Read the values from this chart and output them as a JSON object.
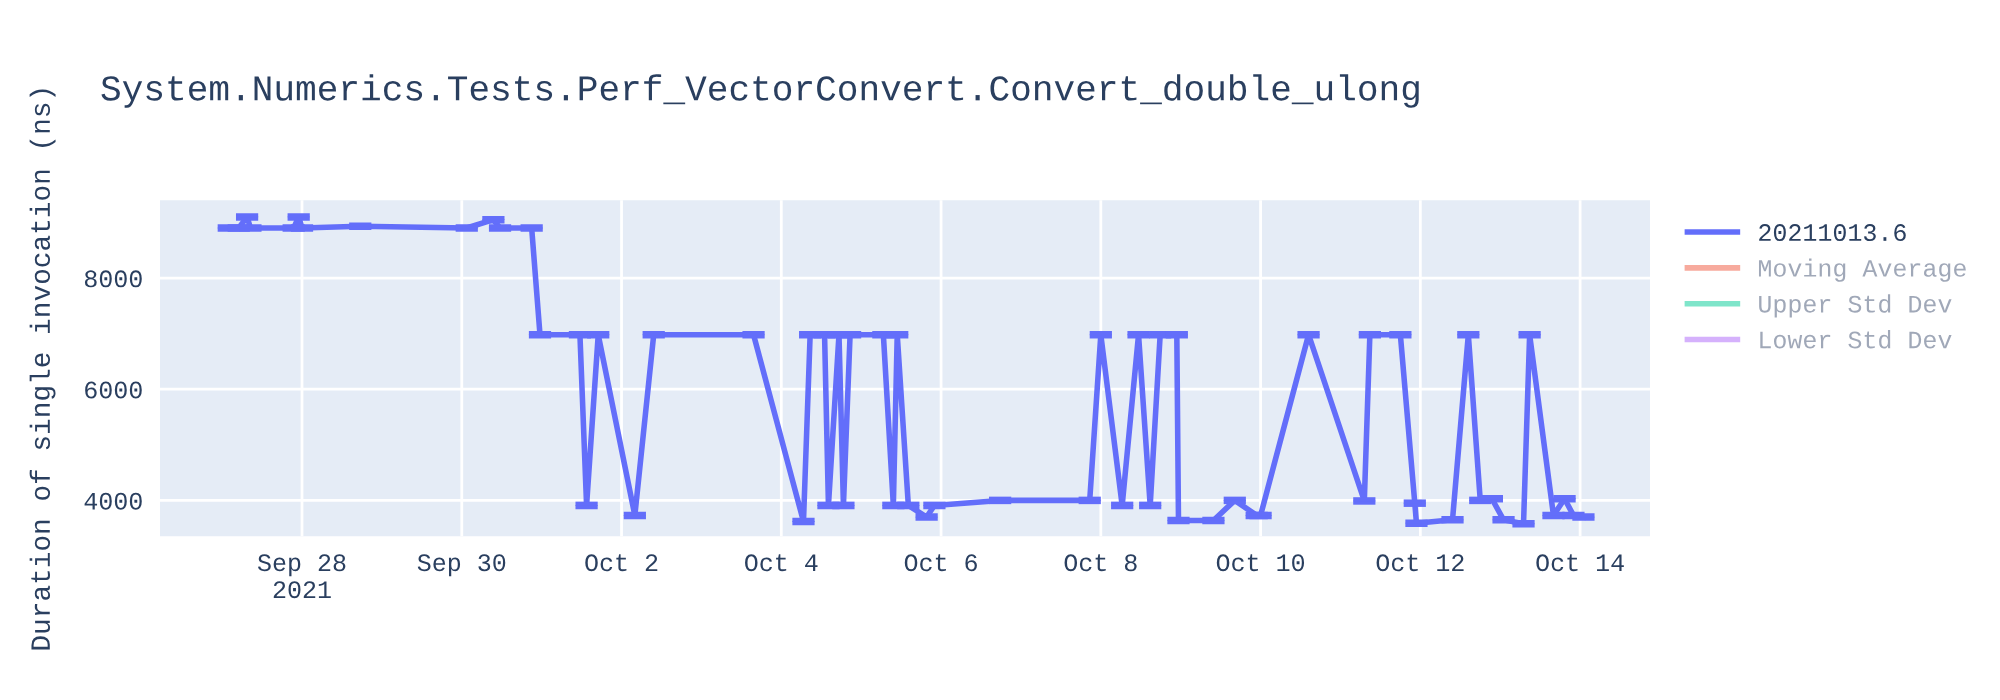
{
  "chart_data": {
    "type": "line",
    "title": "System.Numerics.Tests.Perf_VectorConvert.Convert_double_ulong",
    "ylabel": "Duration of single invocation (ns)",
    "x": [
      "2021-09-27T02:00",
      "2021-09-27T05:00",
      "2021-09-27T07:30",
      "2021-09-27T08:30",
      "2021-09-27T21:30",
      "2021-09-27T23:00",
      "2021-09-28T00:00",
      "2021-09-28T17:30",
      "2021-09-30T01:30",
      "2021-09-30T09:30",
      "2021-09-30T11:30",
      "2021-09-30T21:00",
      "2021-09-30T23:30",
      "2021-10-01T11:30",
      "2021-10-01T13:30",
      "2021-10-01T17:00",
      "2021-10-02T04:00",
      "2021-10-02T09:40",
      "2021-10-03T15:40",
      "2021-10-04T06:40",
      "2021-10-04T08:40",
      "2021-10-04T13:00",
      "2021-10-04T14:10",
      "2021-10-04T17:20",
      "2021-10-04T18:40",
      "2021-10-04T20:40",
      "2021-10-05T06:40",
      "2021-10-05T09:40",
      "2021-10-05T10:50",
      "2021-10-05T14:10",
      "2021-10-05T19:40",
      "2021-10-05T22:00",
      "2021-10-06T17:45",
      "2021-10-07T20:40",
      "2021-10-08T00:00",
      "2021-10-08T06:25",
      "2021-10-08T11:20",
      "2021-10-08T14:50",
      "2021-10-08T17:50",
      "2021-10-08T22:50",
      "2021-10-08T23:20",
      "2021-10-09T09:50",
      "2021-10-09T16:15",
      "2021-10-09T22:50",
      "2021-10-10T00:00",
      "2021-10-10T14:25",
      "2021-10-11T07:10",
      "2021-10-11T08:50",
      "2021-10-11T18:00",
      "2021-10-11T22:20",
      "2021-10-11T22:50",
      "2021-10-12T09:40",
      "2021-10-12T14:25",
      "2021-10-12T18:00",
      "2021-10-12T21:30",
      "2021-10-13T01:00",
      "2021-10-13T07:00",
      "2021-10-13T08:50",
      "2021-10-13T16:00",
      "2021-10-13T19:20",
      "2021-10-13T22:00",
      "2021-10-14T01:00"
    ],
    "series": [
      {
        "name": "20211013.6",
        "color": "#636efa",
        "values": [
          8900,
          8900,
          9100,
          8900,
          8900,
          9100,
          8900,
          8930,
          8900,
          9050,
          8900,
          8900,
          6980,
          6980,
          3910,
          6980,
          3730,
          6980,
          6980,
          3620,
          6980,
          6980,
          3910,
          6980,
          3910,
          6980,
          6980,
          3910,
          6980,
          3910,
          3700,
          3910,
          4000,
          4000,
          6980,
          3910,
          6980,
          3910,
          6980,
          6980,
          3640,
          3640,
          4000,
          3730,
          3730,
          6980,
          3990,
          6980,
          6980,
          3950,
          3590,
          3650,
          6980,
          4000,
          4030,
          3650,
          3580,
          6980,
          3730,
          4030,
          3730,
          3700
        ],
        "errors": [
          30,
          30,
          30,
          30,
          30,
          30,
          30,
          30,
          30,
          30,
          30,
          30,
          30,
          30,
          30,
          30,
          30,
          30,
          30,
          30,
          30,
          30,
          30,
          30,
          30,
          30,
          30,
          30,
          30,
          30,
          30,
          30,
          30,
          30,
          30,
          30,
          30,
          30,
          30,
          30,
          30,
          30,
          30,
          30,
          30,
          30,
          30,
          30,
          30,
          30,
          30,
          30,
          30,
          30,
          30,
          30,
          30,
          30,
          30,
          30,
          30,
          30
        ]
      },
      {
        "name": "Moving Average",
        "color": "#ef553b",
        "values": [
          null,
          null,
          null,
          null,
          null,
          null,
          null,
          null,
          null,
          null,
          null,
          null,
          null,
          null,
          null,
          null,
          null,
          null,
          null,
          null,
          null,
          null,
          null,
          null,
          null,
          null,
          null,
          null,
          null,
          null,
          null,
          null,
          null,
          null,
          null,
          null,
          null,
          null,
          null,
          null,
          null,
          null,
          null,
          null,
          null,
          null,
          null,
          null,
          null,
          null,
          null,
          null,
          null,
          null,
          null,
          null,
          null,
          null,
          null,
          null,
          null,
          null
        ]
      },
      {
        "name": "Upper Std Dev",
        "color": "#00cc96",
        "values": [
          null,
          null,
          null,
          null,
          null,
          null,
          null,
          null,
          null,
          null,
          null,
          null,
          null,
          null,
          null,
          null,
          null,
          null,
          null,
          null,
          null,
          null,
          null,
          null,
          null,
          null,
          null,
          null,
          null,
          null,
          null,
          null,
          null,
          null,
          null,
          null,
          null,
          null,
          null,
          null,
          null,
          null,
          null,
          null,
          null,
          null,
          null,
          null,
          null,
          null,
          null,
          null,
          null,
          null,
          null,
          null,
          null,
          null,
          null,
          null,
          null,
          null
        ]
      },
      {
        "name": "Lower Std Dev",
        "color": "#ab63fa",
        "values": [
          null,
          null,
          null,
          null,
          null,
          null,
          null,
          null,
          null,
          null,
          null,
          null,
          null,
          null,
          null,
          null,
          null,
          null,
          null,
          null,
          null,
          null,
          null,
          null,
          null,
          null,
          null,
          null,
          null,
          null,
          null,
          null,
          null,
          null,
          null,
          null,
          null,
          null,
          null,
          null,
          null,
          null,
          null,
          null,
          null,
          null,
          null,
          null,
          null,
          null,
          null,
          null,
          null,
          null,
          null,
          null,
          null,
          null,
          null,
          null,
          null,
          null
        ]
      }
    ],
    "xlim": [
      "2021-09-26T05:20",
      "2021-10-14T21:00"
    ],
    "xticks": [
      {
        "value": "2021-09-28",
        "label": "Sep 28\n2021"
      },
      {
        "value": "2021-09-30",
        "label": "Sep 30"
      },
      {
        "value": "2021-10-02",
        "label": "Oct 2"
      },
      {
        "value": "2021-10-04",
        "label": "Oct 4"
      },
      {
        "value": "2021-10-06",
        "label": "Oct 6"
      },
      {
        "value": "2021-10-08",
        "label": "Oct 8"
      },
      {
        "value": "2021-10-10",
        "label": "Oct 10"
      },
      {
        "value": "2021-10-12",
        "label": "Oct 12"
      },
      {
        "value": "2021-10-14",
        "label": "Oct 14"
      }
    ],
    "ylim": [
      3356,
      9400
    ],
    "yticks": [
      4000,
      6000,
      8000
    ],
    "grid": true,
    "legend": "top right",
    "marker": "none",
    "line_style": "solid"
  }
}
